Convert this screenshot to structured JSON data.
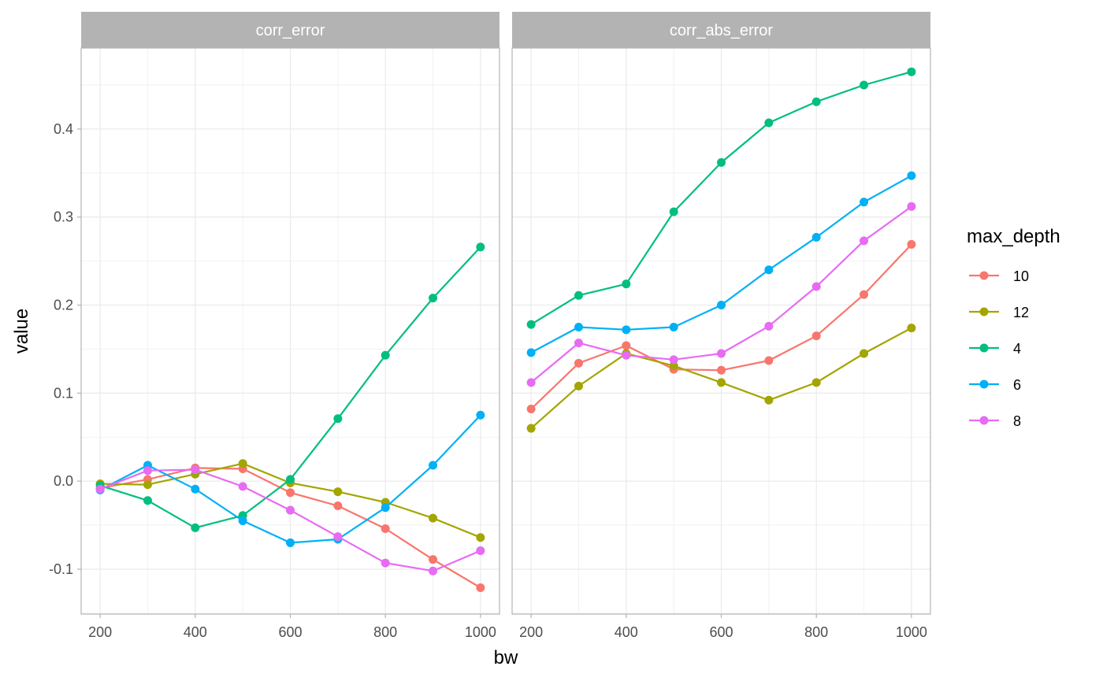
{
  "chart_data": {
    "type": "line",
    "xlabel": "bw",
    "ylabel": "value",
    "xlim": [
      160,
      1040
    ],
    "ylim": [
      -0.151,
      0.492
    ],
    "x_ticks": [
      200,
      400,
      600,
      800,
      1000
    ],
    "x_tick_labels": [
      "200",
      "400",
      "600",
      "800",
      "1000"
    ],
    "y_ticks": [
      -0.1,
      0.0,
      0.1,
      0.2,
      0.3,
      0.4
    ],
    "y_tick_labels": [
      "-0.1",
      "0.0",
      "0.1",
      "0.2",
      "0.3",
      "0.4"
    ],
    "grid": true,
    "legend": {
      "title": "max_depth",
      "position": "right",
      "entries": [
        "10",
        "12",
        "4",
        "6",
        "8"
      ]
    },
    "colors": {
      "10": "#F8766D",
      "12": "#A3A500",
      "4": "#00BF7D",
      "6": "#00B0F6",
      "8": "#E76BF3",
      "strip_bg": "#B3B3B3",
      "grid": "#EBEBEB",
      "panel_border": "#B3B3B3"
    },
    "x": [
      200,
      300,
      400,
      500,
      600,
      700,
      800,
      900,
      1000
    ],
    "panels": [
      {
        "title": "corr_error",
        "series": [
          {
            "name": "10",
            "values": [
              -0.008,
              0.002,
              0.015,
              0.014,
              -0.013,
              -0.028,
              -0.054,
              -0.089,
              -0.121
            ]
          },
          {
            "name": "12",
            "values": [
              -0.003,
              -0.004,
              0.008,
              0.02,
              -0.002,
              -0.012,
              -0.024,
              -0.042,
              -0.064
            ]
          },
          {
            "name": "4",
            "values": [
              -0.005,
              -0.022,
              -0.053,
              -0.039,
              0.002,
              0.071,
              0.143,
              0.208,
              0.266
            ]
          },
          {
            "name": "6",
            "values": [
              -0.01,
              0.018,
              -0.009,
              -0.045,
              -0.07,
              -0.066,
              -0.03,
              0.018,
              0.075
            ]
          },
          {
            "name": "8",
            "values": [
              -0.009,
              0.012,
              0.013,
              -0.006,
              -0.033,
              -0.063,
              -0.093,
              -0.102,
              -0.079
            ]
          }
        ]
      },
      {
        "title": "corr_abs_error",
        "series": [
          {
            "name": "10",
            "values": [
              0.082,
              0.134,
              0.154,
              0.127,
              0.126,
              0.137,
              0.165,
              0.212,
              0.269
            ]
          },
          {
            "name": "12",
            "values": [
              0.06,
              0.108,
              0.145,
              0.131,
              0.112,
              0.092,
              0.112,
              0.145,
              0.174
            ]
          },
          {
            "name": "4",
            "values": [
              0.178,
              0.211,
              0.224,
              0.306,
              0.362,
              0.407,
              0.431,
              0.45,
              0.465
            ]
          },
          {
            "name": "6",
            "values": [
              0.146,
              0.175,
              0.172,
              0.175,
              0.2,
              0.24,
              0.277,
              0.317,
              0.347
            ]
          },
          {
            "name": "8",
            "values": [
              0.112,
              0.157,
              0.143,
              0.138,
              0.145,
              0.176,
              0.221,
              0.273,
              0.312
            ]
          }
        ]
      }
    ]
  }
}
